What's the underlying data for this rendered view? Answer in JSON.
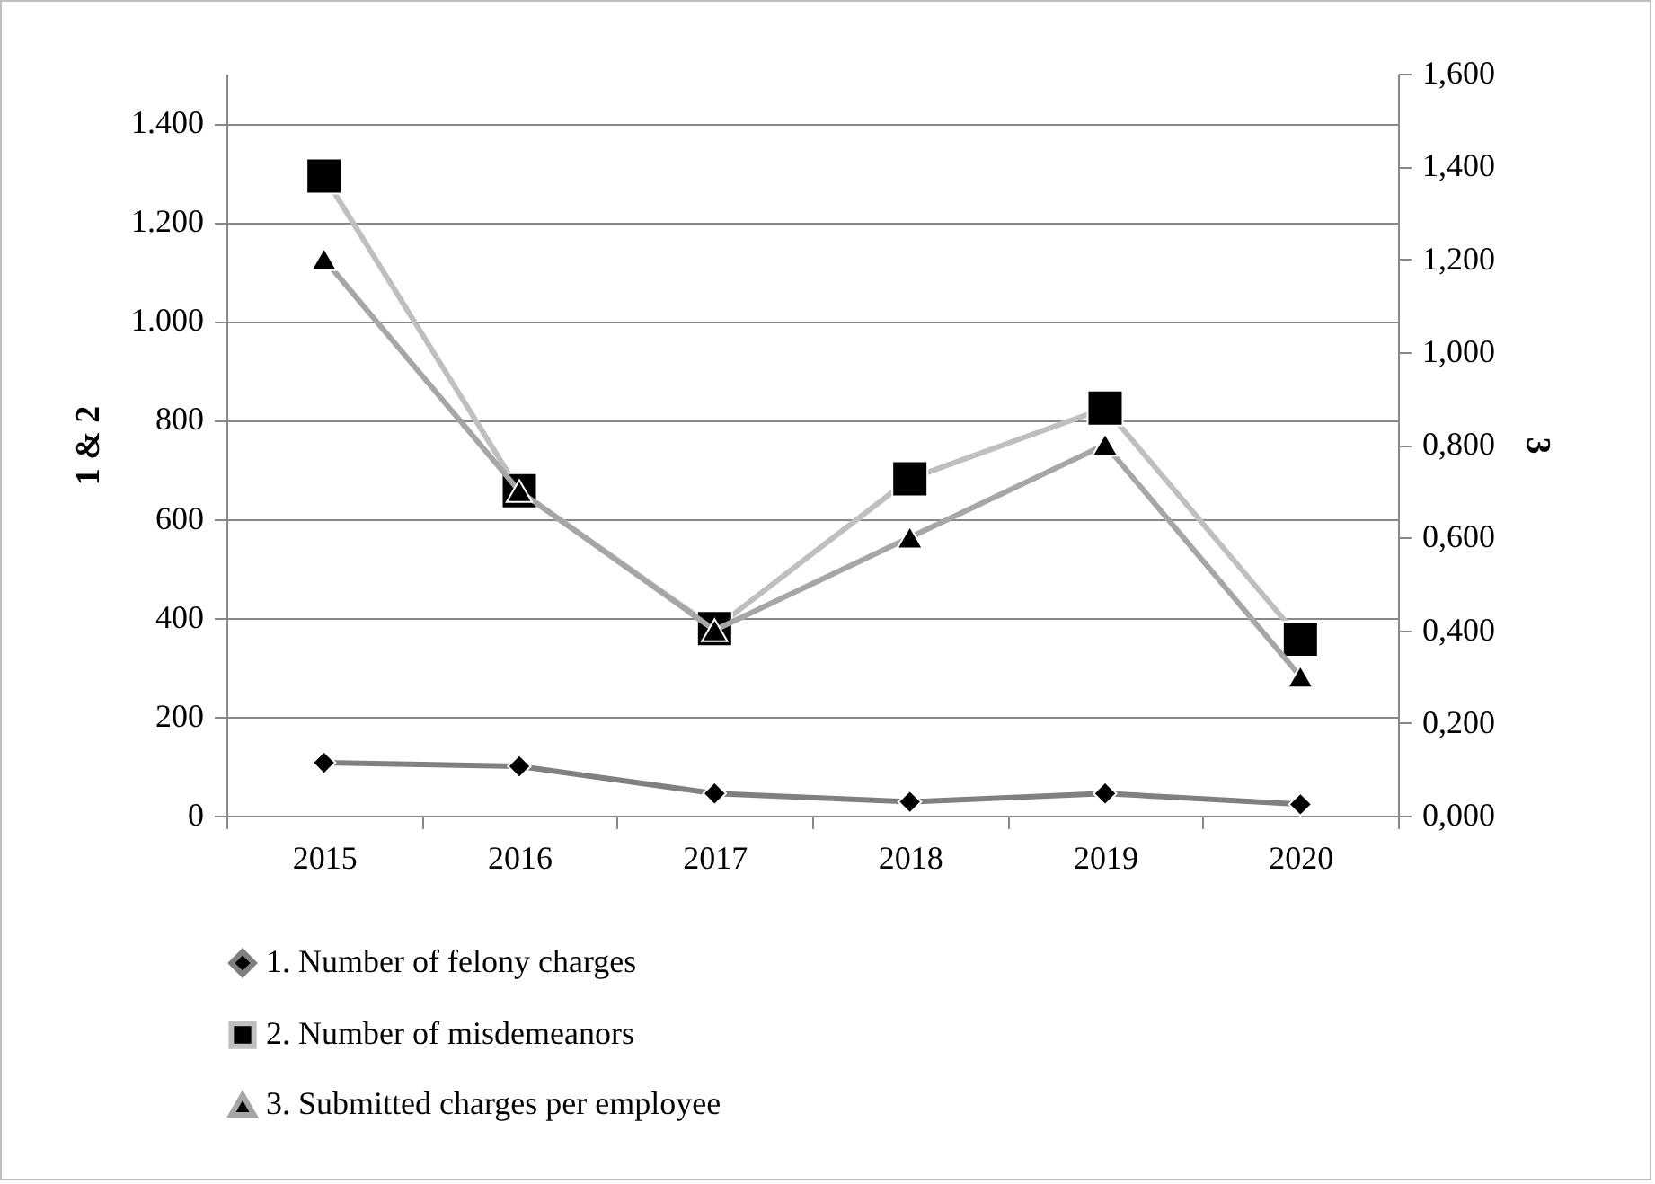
{
  "chart_data": {
    "type": "line",
    "ylabel": "1 & 2",
    "y2label": "3",
    "categories": [
      "2015",
      "2016",
      "2017",
      "2018",
      "2019",
      "2020"
    ],
    "series": [
      {
        "name": "1. Number of felony charges",
        "color": "#808080",
        "marker": "diamond",
        "values": [
          107,
          100,
          45,
          28,
          45,
          23
        ]
      },
      {
        "name": "2. Number of misdemeanors",
        "color": "#bfbfbf",
        "marker": "square",
        "values": [
          1293,
          657,
          378,
          681,
          824,
          357
        ]
      },
      {
        "name": "3. Submitted charges per employee",
        "color": "#a6a6a6",
        "marker": "triangle",
        "axis": "y2",
        "values": [
          1.2,
          0.7,
          0.4,
          0.6,
          0.8,
          0.3
        ]
      }
    ],
    "ylim": [
      0,
      1500
    ],
    "yticks": [
      0,
      200,
      400,
      600,
      800,
      {
        "value": 1000,
        "label": "1.000"
      },
      {
        "value": 1200,
        "label": "1.200"
      },
      {
        "value": 1400,
        "label": "1.400"
      }
    ],
    "y2lim": [
      0,
      1.6
    ],
    "y2ticks": [
      {
        "value": 0,
        "label": "0,000"
      },
      {
        "value": 0.2,
        "label": "0,200"
      },
      {
        "value": 0.4,
        "label": "0,400"
      },
      {
        "value": 0.6,
        "label": "0,600"
      },
      {
        "value": 0.8,
        "label": "0,800"
      },
      {
        "value": 1,
        "label": "1,000"
      },
      {
        "value": 1.2,
        "label": "1,200"
      },
      {
        "value": 1.4,
        "label": "1,400"
      },
      {
        "value": 1.6,
        "label": "1,600"
      }
    ],
    "grid": "y",
    "legend": "bottom",
    "line_style": "solid"
  }
}
